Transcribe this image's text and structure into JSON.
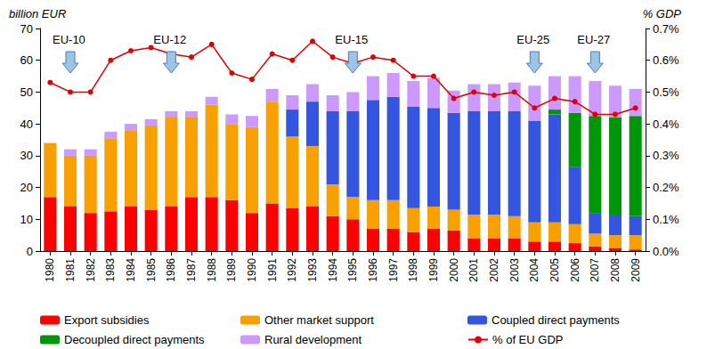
{
  "chart_data": {
    "type": "bar",
    "stacked": true,
    "grid": false,
    "legend": "bottom",
    "y_label": "billion EUR",
    "y2_label": "% GDP",
    "categories": [
      "1980",
      "1981",
      "1982",
      "1983",
      "1984",
      "1985",
      "1986",
      "1987",
      "1988",
      "1989",
      "1990",
      "1991",
      "1992",
      "1993",
      "1994",
      "1995",
      "1996",
      "1997",
      "1998",
      "1999",
      "2000",
      "2001",
      "2002",
      "2003",
      "2004",
      "2005",
      "2006",
      "2007",
      "2008",
      "2009"
    ],
    "ylim": [
      0,
      70
    ],
    "yticks": [
      0,
      10,
      20,
      30,
      40,
      50,
      60,
      70
    ],
    "y2lim": [
      0,
      0.7
    ],
    "y2ticks": [
      {
        "value": 0,
        "label": "0.0%"
      },
      {
        "value": 0.1,
        "label": "0.1%"
      },
      {
        "value": 0.2,
        "label": "0.2%"
      },
      {
        "value": 0.3,
        "label": "0.3%"
      },
      {
        "value": 0.4,
        "label": "0.4%"
      },
      {
        "value": 0.5,
        "label": "0.5%"
      },
      {
        "value": 0.6,
        "label": "0.6%"
      },
      {
        "value": 0.7,
        "label": "0.7%"
      }
    ],
    "annotations": [
      {
        "text": "EU-10",
        "x": "1981"
      },
      {
        "text": "EU-12",
        "x": "1986"
      },
      {
        "text": "EU-15",
        "x": "1995"
      },
      {
        "text": "EU-25",
        "x": "2004"
      },
      {
        "text": "EU-27",
        "x": "2007"
      }
    ],
    "series": [
      {
        "name": "Export subsidies",
        "type": "bar",
        "color": "#ff0000",
        "values": [
          17,
          14,
          12,
          12.5,
          14,
          13,
          14,
          17,
          17,
          16,
          12,
          15,
          13.5,
          14,
          11,
          10,
          7,
          7,
          6,
          7,
          6.5,
          4,
          4,
          4,
          3,
          3,
          2.5,
          1.5,
          1,
          0.5
        ]
      },
      {
        "name": "Other market support",
        "type": "bar",
        "color": "#f7a000",
        "values": [
          17,
          16,
          18,
          23,
          24,
          26.5,
          28,
          25,
          29,
          24,
          27,
          32,
          22.5,
          19,
          10,
          7,
          9,
          9,
          7.5,
          7,
          6.5,
          7.5,
          7.5,
          7,
          6,
          6,
          6,
          4,
          4,
          4.5
        ]
      },
      {
        "name": "Coupled direct payments",
        "type": "bar",
        "color": "#3355e0",
        "values": [
          0,
          0,
          0,
          0,
          0,
          0,
          0,
          0,
          0,
          0,
          0,
          0,
          8.5,
          14,
          23,
          27,
          31.5,
          32.5,
          32,
          31,
          30.5,
          32.5,
          32.5,
          33,
          32,
          34,
          18,
          6.5,
          6.5,
          6
        ]
      },
      {
        "name": "Decoupled direct payments",
        "type": "bar",
        "color": "#00960a",
        "values": [
          0,
          0,
          0,
          0,
          0,
          0,
          0,
          0,
          0,
          0,
          0,
          0,
          0,
          0,
          0,
          0,
          0,
          0,
          0,
          0,
          0,
          0,
          0,
          0,
          0,
          1.5,
          17,
          30.5,
          30.5,
          31.5
        ]
      },
      {
        "name": "Rural development",
        "type": "bar",
        "color": "#cc99ff",
        "values": [
          0,
          2,
          2,
          2,
          2,
          2,
          2,
          2,
          2.5,
          3,
          3.5,
          4,
          4.5,
          5.5,
          5,
          6,
          7.5,
          7.5,
          8,
          9.5,
          7,
          8.5,
          8.5,
          9,
          11,
          10.5,
          11.5,
          11,
          10,
          8.5
        ]
      },
      {
        "name": "% of EU GDP",
        "type": "line",
        "axis": "y2",
        "color": "#e00000",
        "marker": "circle",
        "values": [
          0.53,
          0.5,
          0.5,
          0.6,
          0.63,
          0.64,
          0.62,
          0.61,
          0.65,
          0.56,
          0.54,
          0.62,
          0.6,
          0.66,
          0.61,
          0.59,
          0.61,
          0.6,
          0.55,
          0.55,
          0.48,
          0.5,
          0.49,
          0.5,
          0.45,
          0.48,
          0.47,
          0.43,
          0.43,
          0.45
        ]
      }
    ]
  }
}
